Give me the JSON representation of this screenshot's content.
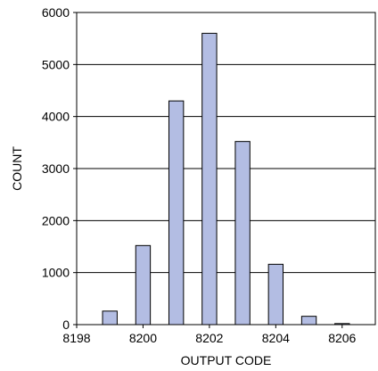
{
  "chart_data": {
    "type": "bar",
    "title": "",
    "xlabel": "OUTPUT CODE",
    "ylabel": "COUNT",
    "xlim": [
      8198,
      8207
    ],
    "ylim": [
      0,
      6000
    ],
    "x_ticks": [
      "8198",
      "8200",
      "8202",
      "8204",
      "8206"
    ],
    "y_ticks": [
      "0",
      "1000",
      "2000",
      "3000",
      "4000",
      "5000",
      "6000"
    ],
    "grid": "horizontal",
    "legend": "none",
    "bar_color": "#b3bde3",
    "bar_edge_color": "#000000",
    "categories": [
      8199,
      8200,
      8201,
      8202,
      8203,
      8204,
      8205,
      8206
    ],
    "values": [
      260,
      1520,
      4300,
      5600,
      3520,
      1160,
      160,
      20
    ]
  }
}
